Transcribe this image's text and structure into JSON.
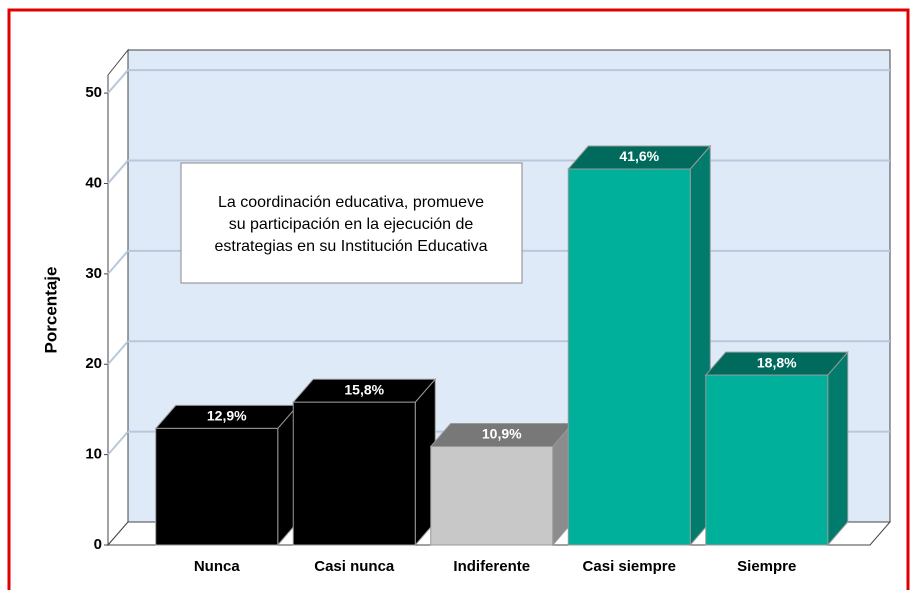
{
  "chart_data": {
    "type": "bar3d",
    "ylabel": "Porcentaje",
    "annotation": [
      "La coordinación educativa, promueve",
      "su participación en la ejecución de",
      "estrategias en su Institución Educativa"
    ],
    "categories": [
      "Nunca",
      "Casi nunca",
      "Indiferente",
      "Casi siempre",
      "Siempre"
    ],
    "values": [
      12.9,
      15.8,
      10.9,
      41.6,
      18.8
    ],
    "value_labels": [
      "12,9%",
      "15,8%",
      "10,9%",
      "41,6%",
      "18,8%"
    ],
    "colors": [
      "#000000",
      "#000000",
      "#c8c8c8",
      "#00b09a",
      "#00b09a"
    ],
    "ylim": [
      0,
      52
    ],
    "yticks": [
      0,
      10,
      20,
      30,
      40,
      50
    ],
    "grid": true
  }
}
